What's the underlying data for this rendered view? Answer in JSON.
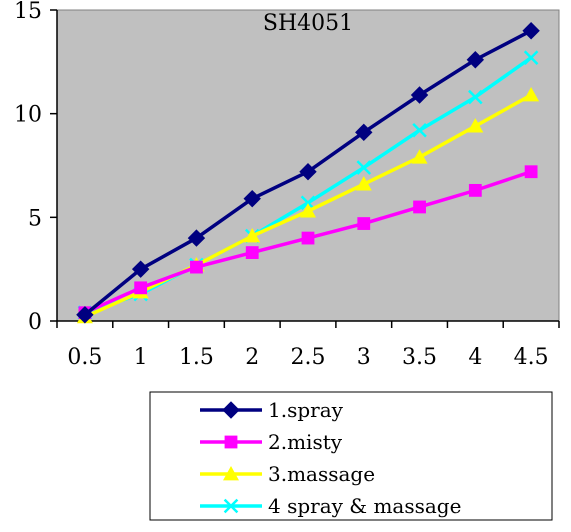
{
  "chart_data": {
    "type": "line",
    "title": "SH4051",
    "xlabel": "",
    "ylabel": "",
    "categories": [
      "0.5",
      "1",
      "1.5",
      "2",
      "2.5",
      "3",
      "3.5",
      "4",
      "4.5"
    ],
    "yticks": [
      "0",
      "5",
      "10",
      "15"
    ],
    "ylim": [
      0,
      15
    ],
    "grid": false,
    "legend_position": "bottom",
    "plot_background": "#c0c0c0",
    "series": [
      {
        "name": "1.spray",
        "marker": "diamond",
        "color": "#000080",
        "values": [
          0.3,
          2.5,
          4.0,
          5.9,
          7.2,
          9.1,
          10.9,
          12.6,
          14.0
        ]
      },
      {
        "name": "2.misty",
        "marker": "square",
        "color": "#ff00ff",
        "values": [
          0.4,
          1.6,
          2.6,
          3.3,
          4.0,
          4.7,
          5.5,
          6.3,
          7.2
        ]
      },
      {
        "name": "3.massage",
        "marker": "triangle",
        "color": "#ffff00",
        "values": [
          0.2,
          1.4,
          2.7,
          4.1,
          5.3,
          6.6,
          7.9,
          9.4,
          10.9
        ]
      },
      {
        "name": "4 spray & massage",
        "marker": "x",
        "color": "#00ffff",
        "values": [
          0.4,
          1.3,
          2.7,
          4.1,
          5.7,
          7.4,
          9.2,
          10.8,
          12.7
        ]
      }
    ]
  }
}
